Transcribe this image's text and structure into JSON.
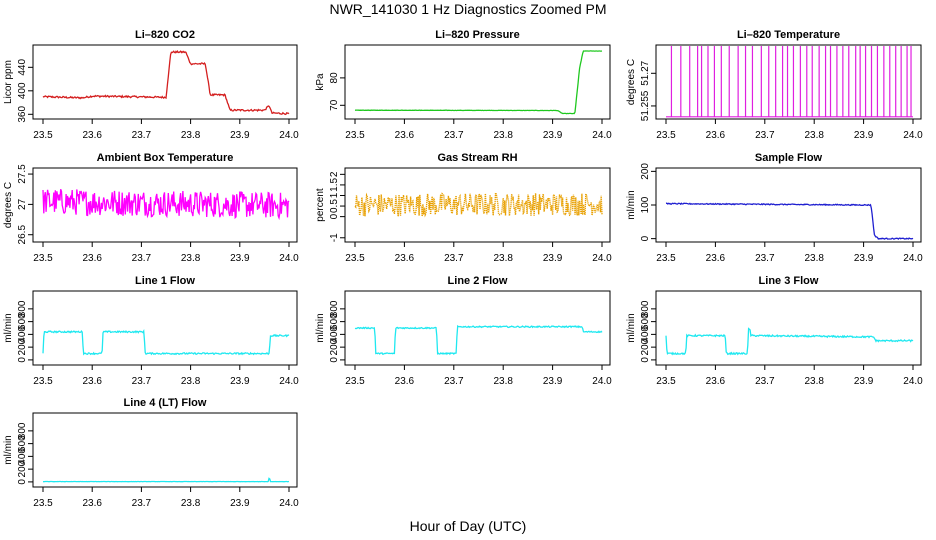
{
  "figure": {
    "title": "NWR_141030  1 Hz Diagnostics Zoomed PM",
    "xlabel": "Hour of Day (UTC)"
  },
  "chart_data": [
    {
      "type": "line",
      "title": "Li–820 CO2",
      "ylabel": "Licor ppm",
      "color": "#d41f1f",
      "xlim": [
        23.5,
        24.0
      ],
      "ylim": [
        352,
        478
      ],
      "xticks": [
        "23.5",
        "23.6",
        "23.7",
        "23.8",
        "23.9",
        "24.0"
      ],
      "yticks": [
        360,
        400,
        440
      ],
      "series": [
        {
          "name": "CO2",
          "x": [
            23.5,
            23.58,
            23.6,
            23.75,
            23.76,
            23.79,
            23.8,
            23.83,
            23.84,
            23.87,
            23.88,
            23.95,
            23.96,
            23.965,
            23.97,
            24.0
          ],
          "y": [
            390,
            388,
            391,
            389,
            466,
            466,
            446,
            446,
            393,
            393,
            367,
            367,
            375,
            362,
            362,
            361
          ]
        }
      ],
      "noise": 1.5
    },
    {
      "type": "line",
      "title": "Li–820 Pressure",
      "ylabel": "kPa",
      "color": "#1fc81f",
      "xlim": [
        23.5,
        24.0
      ],
      "ylim": [
        65,
        92
      ],
      "xticks": [
        "23.5",
        "23.6",
        "23.7",
        "23.8",
        "23.9",
        "24.0"
      ],
      "yticks": [
        70,
        80
      ],
      "series": [
        {
          "name": "Pressure",
          "x": [
            23.5,
            23.91,
            23.92,
            23.93,
            23.945,
            23.955,
            23.962,
            24.0
          ],
          "y": [
            68.2,
            68.1,
            67.0,
            67.0,
            67.0,
            84.0,
            89.8,
            89.8
          ]
        }
      ],
      "noise": 0.05
    },
    {
      "type": "spikes",
      "title": "Li–820 Temperature",
      "ylabel": "degrees C",
      "color": "#e01fe0",
      "xlim": [
        23.5,
        24.0
      ],
      "ylim": [
        51.249,
        51.283
      ],
      "xticks": [
        "23.5",
        "23.6",
        "23.7",
        "23.8",
        "23.9",
        "24.0"
      ],
      "yticks": [
        51.255,
        51.27
      ],
      "baseline": 51.25,
      "spike_top": 51.283,
      "spike_x": [
        23.511,
        23.53,
        23.548,
        23.564,
        23.572,
        23.585,
        23.598,
        23.612,
        23.628,
        23.646,
        23.661,
        23.675,
        23.693,
        23.708,
        23.722,
        23.736,
        23.746,
        23.758,
        23.772,
        23.785,
        23.796,
        23.81,
        23.823,
        23.833,
        23.846,
        23.858,
        23.87,
        23.884,
        23.893,
        23.904,
        23.916,
        23.928,
        23.941,
        23.953,
        23.965,
        23.976,
        23.988,
        23.996
      ]
    },
    {
      "type": "line",
      "title": "Ambient Box Temperature",
      "ylabel": "degrees C",
      "color": "#ff00ff",
      "xlim": [
        23.5,
        24.0
      ],
      "ylim": [
        26.38,
        27.6
      ],
      "xticks": [
        "23.5",
        "23.6",
        "23.7",
        "23.8",
        "23.9",
        "24.0"
      ],
      "yticks": [
        26.5,
        27.0,
        27.5
      ],
      "series": [
        {
          "name": "Ambient",
          "x": [
            23.5,
            24.0
          ],
          "y": [
            27.05,
            26.98
          ]
        }
      ],
      "noise": 0.22
    },
    {
      "type": "line",
      "title": "Gas Stream RH",
      "ylabel": "percent",
      "color": "#e8a000",
      "xlim": [
        23.5,
        24.0
      ],
      "ylim": [
        -1.2,
        2.3
      ],
      "xticks": [
        "23.5",
        "23.6",
        "23.7",
        "23.8",
        "23.9",
        "24.0"
      ],
      "yticks": [
        -1.0,
        0.0,
        0.5,
        1.0,
        1.5,
        2.0
      ],
      "series": [
        {
          "name": "RH",
          "x": [
            23.5,
            24.0
          ],
          "y": [
            0.55,
            0.6
          ]
        }
      ],
      "noise": 0.55
    },
    {
      "type": "line",
      "title": "Sample Flow",
      "ylabel": "ml/min",
      "color": "#1f1fd0",
      "xlim": [
        23.5,
        24.0
      ],
      "ylim": [
        -10,
        210
      ],
      "xticks": [
        "23.5",
        "23.6",
        "23.7",
        "23.8",
        "23.9",
        "24.0"
      ],
      "yticks": [
        0,
        100,
        200
      ],
      "series": [
        {
          "name": "Sample",
          "x": [
            23.5,
            23.91,
            23.915,
            23.922,
            23.93,
            24.0
          ],
          "y": [
            104,
            100,
            100,
            10,
            0,
            0
          ]
        }
      ],
      "noise": 1.5
    },
    {
      "type": "line",
      "title": "Line 1 Flow",
      "ylabel": "ml/min",
      "color": "#1fe8f0",
      "xlim": [
        23.5,
        24.0
      ],
      "ylim": [
        -80,
        1080
      ],
      "xticks": [
        "23.5",
        "23.6",
        "23.7",
        "23.8",
        "23.9",
        "24.0"
      ],
      "yticks": [
        0,
        200,
        400,
        600,
        800
      ],
      "series": [
        {
          "name": "Line1",
          "x": [
            23.5,
            23.502,
            23.504,
            23.58,
            23.582,
            23.62,
            23.622,
            23.705,
            23.708,
            23.75,
            23.958,
            23.96,
            23.962,
            24.0
          ],
          "y": [
            100,
            440,
            440,
            440,
            100,
            100,
            440,
            440,
            100,
            100,
            100,
            100,
            380,
            380
          ]
        }
      ],
      "noise": 12
    },
    {
      "type": "line",
      "title": "Line 2 Flow",
      "ylabel": "ml/min",
      "color": "#1fe8f0",
      "xlim": [
        23.5,
        24.0
      ],
      "ylim": [
        -80,
        1080
      ],
      "xticks": [
        "23.5",
        "23.6",
        "23.7",
        "23.8",
        "23.9",
        "24.0"
      ],
      "yticks": [
        0,
        200,
        400,
        600,
        800
      ],
      "series": [
        {
          "name": "Line2",
          "x": [
            23.5,
            23.54,
            23.542,
            23.58,
            23.582,
            23.665,
            23.667,
            23.705,
            23.707,
            23.95,
            23.96,
            23.962,
            24.0
          ],
          "y": [
            500,
            500,
            100,
            100,
            500,
            500,
            100,
            100,
            520,
            520,
            520,
            440,
            440
          ]
        }
      ],
      "noise": 10
    },
    {
      "type": "line",
      "title": "Line 3 Flow",
      "ylabel": "ml/min",
      "color": "#1fe8f0",
      "xlim": [
        23.5,
        24.0
      ],
      "ylim": [
        -80,
        1080
      ],
      "xticks": [
        "23.5",
        "23.6",
        "23.7",
        "23.8",
        "23.9",
        "24.0"
      ],
      "yticks": [
        0,
        200,
        400,
        600,
        800
      ],
      "series": [
        {
          "name": "Line3",
          "x": [
            23.5,
            23.502,
            23.504,
            23.54,
            23.542,
            23.62,
            23.622,
            23.665,
            23.667,
            23.67,
            23.672,
            23.92,
            23.925,
            24.0
          ],
          "y": [
            380,
            100,
            100,
            100,
            380,
            380,
            100,
            100,
            480,
            480,
            380,
            360,
            300,
            300
          ]
        }
      ],
      "noise": 12
    },
    {
      "type": "line",
      "title": "Line 4 (LT) Flow",
      "ylabel": "ml/min",
      "color": "#1fe8f0",
      "xlim": [
        23.5,
        24.0
      ],
      "ylim": [
        -80,
        1080
      ],
      "xticks": [
        "23.5",
        "23.6",
        "23.7",
        "23.8",
        "23.9",
        "24.0"
      ],
      "yticks": [
        0,
        200,
        400,
        600,
        800
      ],
      "series": [
        {
          "name": "Line4",
          "x": [
            23.5,
            23.958,
            23.96,
            23.962,
            24.0
          ],
          "y": [
            5,
            5,
            80,
            5,
            5
          ]
        }
      ],
      "noise": 2
    }
  ]
}
